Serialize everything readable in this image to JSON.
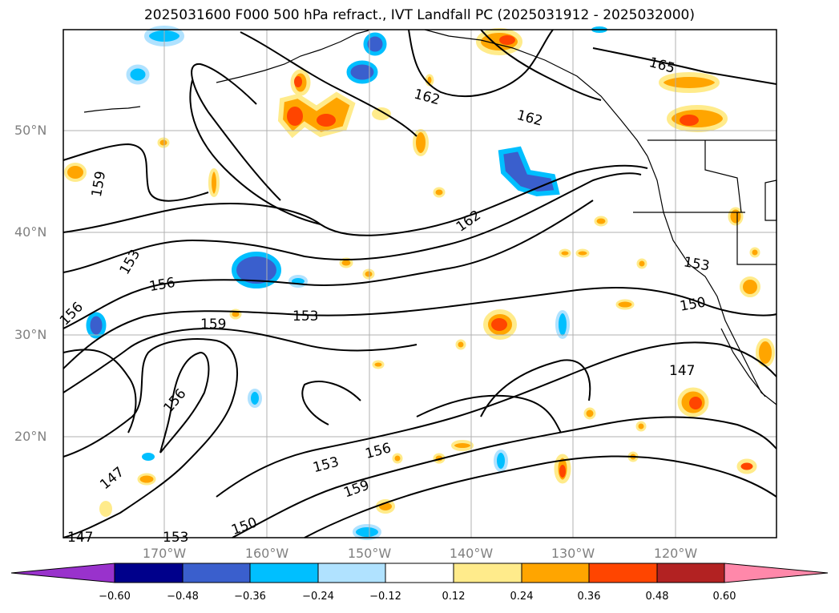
{
  "title": "2025031600 F000 500 hPa refract., IVT Landfall PC (2025031912 - 2025032000)",
  "lat_labels": [
    "50°N",
    "40°N",
    "30°N",
    "20°N"
  ],
  "lon_labels": [
    "170°W",
    "160°W",
    "150°W",
    "140°W",
    "130°W",
    "120°W"
  ],
  "contour_labels": [
    "165",
    "162",
    "162",
    "162",
    "159",
    "153",
    "156",
    "156",
    "153",
    "159",
    "153",
    "150",
    "147",
    "156",
    "153",
    "156",
    "159",
    "150",
    "147",
    "147",
    "153"
  ],
  "colorbar": {
    "ticks": [
      "−0.60",
      "−0.48",
      "−0.36",
      "−0.24",
      "−0.12",
      "0.12",
      "0.24",
      "0.36",
      "0.48",
      "0.60"
    ],
    "colors": [
      "#9932cc",
      "#00008b",
      "#3a5fcd",
      "#00bfff",
      "#b0e2ff",
      "#ffffff",
      "#ffeb8b",
      "#ffa500",
      "#ff4500",
      "#b22222",
      "#ff88aa"
    ]
  },
  "colors": {
    "grid": "#b0b0b0",
    "contour": "#000000",
    "tick_label": "#808080"
  }
}
